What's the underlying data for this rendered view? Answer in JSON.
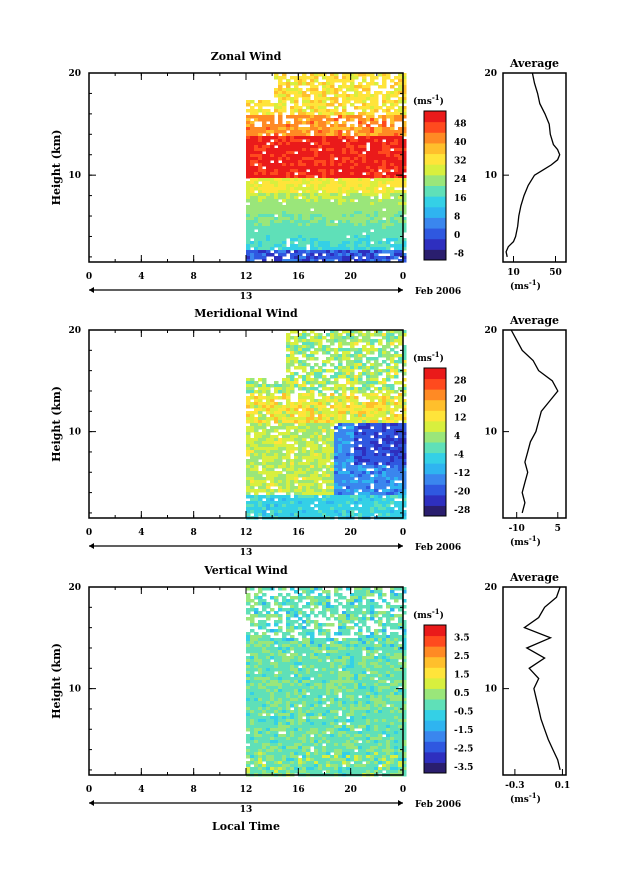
{
  "colors": {
    "colormap": [
      "#2a1e6e",
      "#2e2fbf",
      "#2f58e0",
      "#3a86ee",
      "#2fb4f0",
      "#34d0e6",
      "#5fe0b8",
      "#9ae67a",
      "#d8ef3e",
      "#ffe43a",
      "#ffbf2c",
      "#ff8a24",
      "#ff4a1e",
      "#ea1a1a"
    ]
  },
  "chart_data": [
    {
      "type": "heatmap",
      "title": "Zonal Wind",
      "ylabel": "Height (km)",
      "yticks": [
        "10",
        "20"
      ],
      "ylim": [
        1.5,
        20
      ],
      "xticks": [
        "0",
        "4",
        "8",
        "12",
        "16",
        "20",
        "0"
      ],
      "xlim": [
        0,
        24
      ],
      "date_label": "13",
      "month_label": "Feb 2006",
      "data_start_hour": 12,
      "colorbar": {
        "unit": "(ms-1)",
        "ticks": [
          "48",
          "40",
          "32",
          "24",
          "16",
          "8",
          "0",
          "-8"
        ],
        "range": [
          -8,
          52
        ]
      },
      "profile": {
        "title": "Average",
        "xticks": [
          "10",
          "50"
        ],
        "xlim": [
          0,
          60
        ],
        "xlabel": "(ms-1)",
        "yticks": [
          "10",
          "20"
        ],
        "points": [
          [
            4,
            2
          ],
          [
            3,
            2.5
          ],
          [
            5,
            3
          ],
          [
            10,
            3.5
          ],
          [
            12,
            4
          ],
          [
            14,
            5
          ],
          [
            15,
            6
          ],
          [
            17,
            7
          ],
          [
            20,
            8
          ],
          [
            24,
            9
          ],
          [
            30,
            10
          ],
          [
            38,
            10.5
          ],
          [
            46,
            11
          ],
          [
            52,
            11.5
          ],
          [
            54,
            12
          ],
          [
            52,
            12.5
          ],
          [
            48,
            13
          ],
          [
            45,
            14
          ],
          [
            44,
            15
          ],
          [
            40,
            16
          ],
          [
            35,
            17
          ],
          [
            33,
            18
          ],
          [
            30,
            19
          ],
          [
            28,
            20
          ]
        ]
      }
    },
    {
      "type": "heatmap",
      "title": "Meridional Wind",
      "ylabel": "Height (km)",
      "yticks": [
        "10",
        "20"
      ],
      "ylim": [
        1.5,
        20
      ],
      "xticks": [
        "0",
        "4",
        "8",
        "12",
        "16",
        "20",
        "0"
      ],
      "xlim": [
        0,
        24
      ],
      "date_label": "13",
      "month_label": "Feb 2006",
      "data_start_hour": 12,
      "colorbar": {
        "unit": "(ms-1)",
        "ticks": [
          "28",
          "20",
          "12",
          "4",
          "-4",
          "-12",
          "-20",
          "-28"
        ],
        "range": [
          -28,
          32
        ]
      },
      "profile": {
        "title": "Average",
        "xticks": [
          "-10",
          "5"
        ],
        "xlim": [
          -15,
          8
        ],
        "xlabel": "(ms-1)",
        "yticks": [
          "10",
          "20"
        ],
        "points": [
          [
            -8,
            2
          ],
          [
            -7,
            3
          ],
          [
            -8,
            4
          ],
          [
            -7,
            5
          ],
          [
            -6,
            6
          ],
          [
            -7,
            7
          ],
          [
            -6,
            8
          ],
          [
            -5,
            9
          ],
          [
            -3,
            10
          ],
          [
            -2,
            11
          ],
          [
            -1,
            12
          ],
          [
            2,
            13
          ],
          [
            5,
            14
          ],
          [
            3,
            15
          ],
          [
            -2,
            16
          ],
          [
            -4,
            17
          ],
          [
            -8,
            18
          ],
          [
            -10,
            19
          ],
          [
            -12,
            20
          ]
        ]
      }
    },
    {
      "type": "heatmap",
      "title": "Vertical Wind",
      "ylabel": "Height (km)",
      "yticks": [
        "10",
        "20"
      ],
      "ylim": [
        1.5,
        20
      ],
      "xticks": [
        "0",
        "4",
        "8",
        "12",
        "16",
        "20",
        "0"
      ],
      "xlim": [
        0,
        24
      ],
      "date_label": "13",
      "month_label": "Feb 2006",
      "xlabel": "Local Time",
      "data_start_hour": 12,
      "colorbar": {
        "unit": "(ms-1)",
        "ticks": [
          "3.5",
          "2.5",
          "1.5",
          "0.5",
          "-0.5",
          "-1.5",
          "-2.5",
          "-3.5"
        ],
        "range": [
          -4,
          4
        ]
      },
      "profile": {
        "title": "Average",
        "xticks": [
          "-0.3",
          "0.1"
        ],
        "xlim": [
          -0.4,
          0.13
        ],
        "xlabel": "(ms-1)",
        "yticks": [
          "10",
          "20"
        ],
        "points": [
          [
            0.08,
            2
          ],
          [
            0.06,
            3
          ],
          [
            0.02,
            4
          ],
          [
            -0.02,
            5
          ],
          [
            -0.05,
            6
          ],
          [
            -0.08,
            7
          ],
          [
            -0.1,
            8
          ],
          [
            -0.12,
            9
          ],
          [
            -0.14,
            10
          ],
          [
            -0.1,
            11
          ],
          [
            -0.18,
            12
          ],
          [
            -0.05,
            13
          ],
          [
            -0.2,
            14
          ],
          [
            0.0,
            15
          ],
          [
            -0.22,
            16
          ],
          [
            -0.1,
            17
          ],
          [
            -0.05,
            18
          ],
          [
            0.05,
            19
          ],
          [
            0.08,
            20
          ]
        ]
      }
    }
  ]
}
